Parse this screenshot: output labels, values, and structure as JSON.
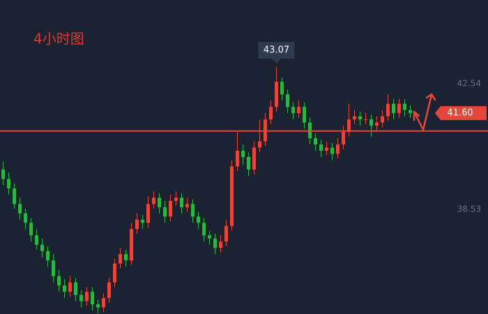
{
  "chart_data": {
    "type": "candlestick",
    "title": "4小时图",
    "up_color": "#e5473b",
    "down_color": "#2fb344",
    "ylim": [
      35.19,
      45.21
    ],
    "yticks": [
      42.54,
      38.53
    ],
    "grid": false,
    "peak_label": 43.07,
    "last_price": {
      "value": 41.6,
      "label": "41.60"
    },
    "hline": 41.03,
    "open": [
      39.8,
      39.5,
      39.2,
      38.7,
      38.4,
      38.1,
      37.7,
      37.4,
      37.2,
      36.9,
      36.4,
      36.1,
      35.9,
      36.2,
      35.8,
      35.6,
      35.9,
      35.5,
      35.4,
      35.7,
      36.2,
      36.8,
      37.1,
      36.9,
      37.9,
      38.2,
      38.1,
      38.7,
      38.9,
      38.6,
      38.3,
      38.8,
      38.9,
      38.6,
      38.7,
      38.3,
      38.1,
      37.7,
      37.6,
      37.3,
      37.5,
      38.0,
      39.9,
      40.4,
      40.2,
      39.8,
      40.5,
      40.7,
      41.4,
      41.8,
      42.6,
      42.2,
      41.8,
      41.6,
      41.8,
      41.3,
      40.8,
      40.6,
      40.4,
      40.5,
      40.3,
      40.6,
      41.0,
      41.4,
      41.5,
      41.4,
      41.4,
      41.2,
      41.3,
      41.5,
      41.9,
      41.6,
      41.9,
      41.7
    ],
    "high": [
      40.05,
      39.7,
      39.35,
      38.9,
      38.55,
      38.25,
      37.9,
      37.6,
      37.35,
      37.1,
      36.6,
      36.3,
      36.4,
      36.35,
      35.95,
      36.05,
      36.05,
      35.65,
      35.85,
      36.35,
      36.95,
      37.3,
      37.25,
      38.1,
      38.4,
      38.35,
      38.95,
      39.1,
      39.05,
      38.8,
      39.0,
      39.1,
      39.05,
      38.9,
      38.85,
      38.45,
      38.25,
      37.85,
      37.75,
      37.7,
      38.2,
      40.1,
      41.0,
      40.6,
      40.35,
      40.7,
      41.4,
      41.6,
      42.0,
      43.07,
      42.75,
      42.35,
      41.95,
      42.0,
      41.95,
      41.45,
      40.95,
      40.75,
      40.7,
      40.65,
      40.8,
      41.2,
      41.9,
      41.7,
      41.65,
      41.6,
      41.55,
      41.5,
      41.7,
      42.2,
      42.05,
      42.05,
      42.05,
      41.85
    ],
    "low": [
      39.3,
      39.0,
      38.55,
      38.2,
      37.9,
      37.5,
      37.25,
      37.0,
      36.7,
      36.2,
      35.9,
      35.7,
      35.75,
      35.6,
      35.4,
      35.45,
      35.3,
      35.2,
      35.25,
      35.55,
      36.05,
      36.65,
      36.7,
      36.75,
      37.75,
      37.9,
      37.95,
      38.55,
      38.4,
      38.1,
      38.15,
      38.65,
      38.4,
      38.45,
      38.1,
      37.9,
      37.5,
      37.4,
      37.1,
      37.15,
      37.35,
      37.85,
      39.75,
      39.95,
      39.6,
      39.65,
      40.35,
      40.55,
      41.25,
      41.65,
      42.0,
      41.6,
      41.4,
      41.45,
      41.1,
      40.6,
      40.4,
      40.2,
      40.25,
      40.1,
      40.15,
      40.45,
      40.85,
      41.25,
      41.2,
      41.25,
      40.85,
      41.05,
      41.15,
      41.35,
      41.4,
      41.45,
      41.5,
      41.45
    ],
    "close": [
      39.5,
      39.2,
      38.7,
      38.4,
      38.1,
      37.7,
      37.4,
      37.2,
      36.9,
      36.4,
      36.1,
      35.9,
      36.2,
      35.8,
      35.6,
      35.9,
      35.5,
      35.4,
      35.7,
      36.2,
      36.8,
      37.1,
      36.9,
      37.9,
      38.2,
      38.1,
      38.7,
      38.9,
      38.6,
      38.3,
      38.8,
      38.9,
      38.6,
      38.7,
      38.3,
      38.1,
      37.7,
      37.6,
      37.3,
      37.5,
      38.0,
      39.9,
      40.4,
      40.2,
      39.8,
      40.5,
      40.7,
      41.4,
      41.8,
      42.6,
      42.2,
      41.8,
      41.6,
      41.8,
      41.3,
      40.8,
      40.6,
      40.4,
      40.5,
      40.3,
      40.6,
      41.0,
      41.4,
      41.5,
      41.4,
      41.4,
      41.2,
      41.3,
      41.5,
      41.9,
      41.6,
      41.9,
      41.7,
      41.6
    ]
  }
}
